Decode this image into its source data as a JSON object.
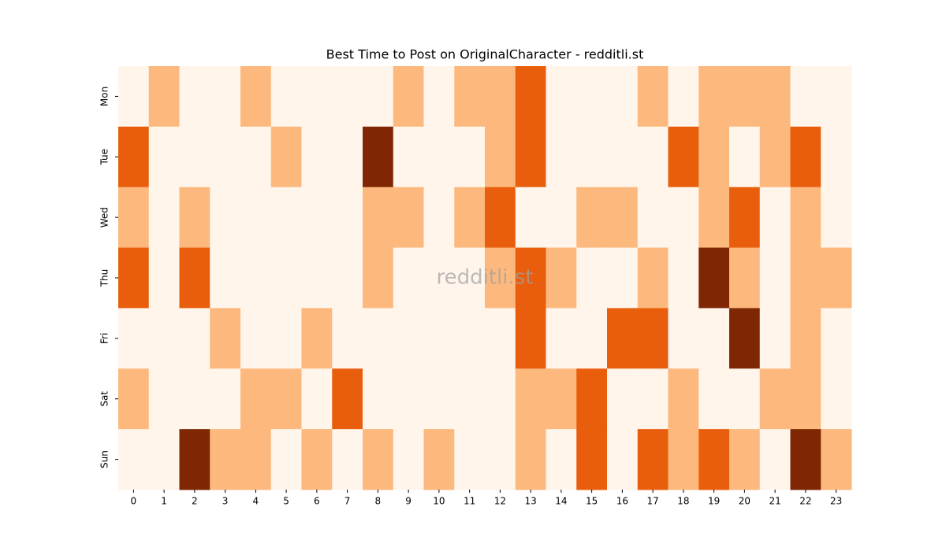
{
  "chart_data": {
    "type": "heatmap",
    "title": "Best Time to Post on OriginalCharacter - redditli.st",
    "watermark": "redditli.st",
    "x": [
      "0",
      "1",
      "2",
      "3",
      "4",
      "5",
      "6",
      "7",
      "8",
      "9",
      "10",
      "11",
      "12",
      "13",
      "14",
      "15",
      "16",
      "17",
      "18",
      "19",
      "20",
      "21",
      "22",
      "23"
    ],
    "y": [
      "Mon",
      "Tue",
      "Wed",
      "Thu",
      "Fri",
      "Sat",
      "Sun"
    ],
    "color_scale": [
      "#fff5eb",
      "#fdb97d",
      "#e95e0d",
      "#7f2704"
    ],
    "values": [
      [
        0,
        1,
        0,
        0,
        1,
        0,
        0,
        0,
        0,
        1,
        0,
        1,
        1,
        2,
        0,
        0,
        0,
        1,
        0,
        1,
        1,
        1,
        0,
        0
      ],
      [
        2,
        0,
        0,
        0,
        0,
        1,
        0,
        0,
        3,
        0,
        0,
        0,
        1,
        2,
        0,
        0,
        0,
        0,
        2,
        1,
        0,
        1,
        2,
        0
      ],
      [
        1,
        0,
        1,
        0,
        0,
        0,
        0,
        0,
        1,
        1,
        0,
        1,
        2,
        0,
        0,
        1,
        1,
        0,
        0,
        1,
        2,
        0,
        1,
        0
      ],
      [
        2,
        0,
        2,
        0,
        0,
        0,
        0,
        0,
        1,
        0,
        0,
        0,
        1,
        2,
        1,
        0,
        0,
        1,
        0,
        3,
        1,
        0,
        1,
        1
      ],
      [
        0,
        0,
        0,
        1,
        0,
        0,
        1,
        0,
        0,
        0,
        0,
        0,
        0,
        2,
        0,
        0,
        2,
        2,
        0,
        0,
        3,
        0,
        1,
        0
      ],
      [
        1,
        0,
        0,
        0,
        1,
        1,
        0,
        2,
        0,
        0,
        0,
        0,
        0,
        1,
        1,
        2,
        0,
        0,
        1,
        0,
        0,
        1,
        1,
        0
      ],
      [
        0,
        0,
        3,
        1,
        1,
        0,
        1,
        0,
        1,
        0,
        1,
        0,
        0,
        1,
        0,
        2,
        0,
        2,
        1,
        2,
        1,
        0,
        3,
        1
      ]
    ]
  }
}
